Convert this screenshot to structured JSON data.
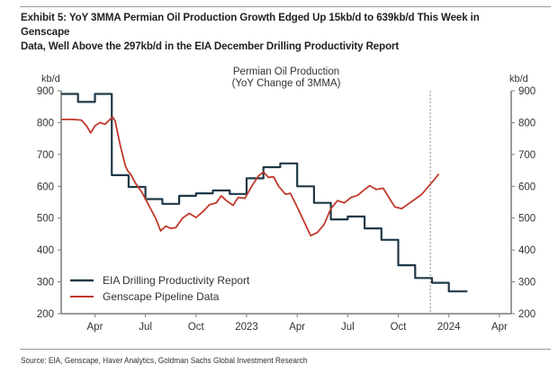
{
  "header": {
    "title_line1": "Exhibit 5: YoY 3MMA Permian Oil Production Growth Edged Up 15kb/d to 639kb/d This Week in Genscape",
    "title_line2": "Data, Well Above the 297kb/d in the EIA December Drilling Productivity Report"
  },
  "footer": {
    "source": "Source: EIA, Genscape, Haver Analytics, Goldman Sachs Global Investment Research"
  },
  "chart_data": {
    "type": "line",
    "title": "Permian Oil Production",
    "subtitle": "(YoY Change of 3MMA)",
    "ylabel_left": "kb/d",
    "ylabel_right": "kb/d",
    "ylim": [
      200,
      900
    ],
    "yticks": [
      "900",
      "800",
      "700",
      "600",
      "500",
      "400",
      "300",
      "200"
    ],
    "ytick_values": [
      900,
      800,
      700,
      600,
      500,
      400,
      300,
      200
    ],
    "x_unit": "months since Jan 2022",
    "xlim": [
      1.0,
      27.7
    ],
    "xticks": [
      {
        "label": "Apr",
        "month": 3
      },
      {
        "label": "Jul",
        "month": 6
      },
      {
        "label": "Oct",
        "month": 9
      },
      {
        "label": "2023",
        "month": 12
      },
      {
        "label": "Apr",
        "month": 15
      },
      {
        "label": "Jul",
        "month": 18
      },
      {
        "label": "Oct",
        "month": 21
      },
      {
        "label": "2024",
        "month": 24
      },
      {
        "label": "Apr",
        "month": 27
      }
    ],
    "vline_month": 22.9,
    "grid": false,
    "legend_position": "bottom-left",
    "series": [
      {
        "name": "EIA Drilling Productivity Report",
        "color": "#1f3848",
        "step": true,
        "points": [
          [
            1.0,
            890
          ],
          [
            2.0,
            865
          ],
          [
            3.0,
            890
          ],
          [
            4.0,
            635
          ],
          [
            5.0,
            598
          ],
          [
            6.0,
            560
          ],
          [
            7.0,
            545
          ],
          [
            8.0,
            570
          ],
          [
            9.0,
            578
          ],
          [
            10.0,
            587
          ],
          [
            11.0,
            576
          ],
          [
            12.0,
            625
          ],
          [
            13.0,
            660
          ],
          [
            14.0,
            672
          ],
          [
            15.0,
            600
          ],
          [
            16.0,
            548
          ],
          [
            17.0,
            496
          ],
          [
            18.0,
            505
          ],
          [
            19.0,
            468
          ],
          [
            20.0,
            432
          ],
          [
            21.0,
            352
          ],
          [
            22.0,
            312
          ],
          [
            23.0,
            297
          ],
          [
            24.0,
            270
          ],
          [
            25.0,
            270
          ]
        ]
      },
      {
        "name": "Genscape Pipeline Data",
        "color": "#c0392b",
        "step": false,
        "points": [
          [
            1.0,
            810
          ],
          [
            1.7,
            810
          ],
          [
            2.2,
            808
          ],
          [
            2.5,
            790
          ],
          [
            2.75,
            768
          ],
          [
            3.0,
            790
          ],
          [
            3.3,
            800
          ],
          [
            3.6,
            795
          ],
          [
            3.9,
            810
          ],
          [
            4.05,
            818
          ],
          [
            4.2,
            805
          ],
          [
            4.5,
            730
          ],
          [
            4.8,
            665
          ],
          [
            4.95,
            648
          ],
          [
            5.1,
            640
          ],
          [
            5.4,
            610
          ],
          [
            5.8,
            580
          ],
          [
            6.2,
            540
          ],
          [
            6.6,
            500
          ],
          [
            6.9,
            460
          ],
          [
            7.2,
            475
          ],
          [
            7.5,
            468
          ],
          [
            7.8,
            470
          ],
          [
            8.2,
            500
          ],
          [
            8.6,
            515
          ],
          [
            9.0,
            502
          ],
          [
            9.4,
            520
          ],
          [
            9.8,
            542
          ],
          [
            10.2,
            548
          ],
          [
            10.5,
            570
          ],
          [
            10.8,
            555
          ],
          [
            11.2,
            540
          ],
          [
            11.5,
            565
          ],
          [
            11.9,
            562
          ],
          [
            12.3,
            600
          ],
          [
            12.7,
            632
          ],
          [
            13.0,
            645
          ],
          [
            13.3,
            628
          ],
          [
            13.6,
            630
          ],
          [
            13.9,
            600
          ],
          [
            14.3,
            575
          ],
          [
            14.6,
            578
          ],
          [
            15.0,
            535
          ],
          [
            15.4,
            490
          ],
          [
            15.8,
            445
          ],
          [
            16.2,
            455
          ],
          [
            16.6,
            480
          ],
          [
            17.0,
            530
          ],
          [
            17.4,
            555
          ],
          [
            17.8,
            548
          ],
          [
            18.2,
            565
          ],
          [
            18.6,
            572
          ],
          [
            19.0,
            590
          ],
          [
            19.3,
            602
          ],
          [
            19.7,
            590
          ],
          [
            20.1,
            594
          ],
          [
            20.5,
            560
          ],
          [
            20.8,
            535
          ],
          [
            21.2,
            530
          ],
          [
            21.6,
            545
          ],
          [
            22.0,
            560
          ],
          [
            22.4,
            575
          ],
          [
            22.8,
            600
          ],
          [
            23.2,
            625
          ],
          [
            23.4,
            639
          ]
        ]
      }
    ]
  }
}
